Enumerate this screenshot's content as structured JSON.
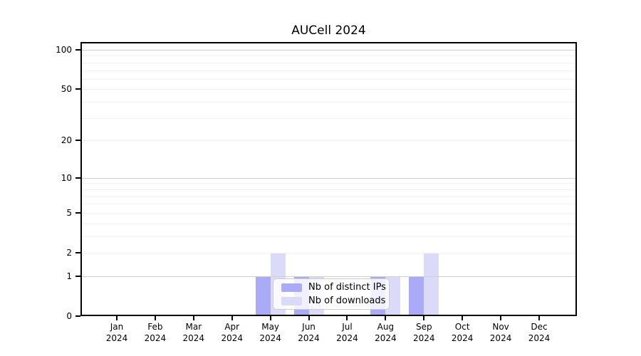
{
  "title": "AUCell 2024",
  "chart_data": {
    "type": "bar",
    "title": "AUCell 2024",
    "categories": [
      {
        "month": "Jan",
        "year": "2024"
      },
      {
        "month": "Feb",
        "year": "2024"
      },
      {
        "month": "Mar",
        "year": "2024"
      },
      {
        "month": "Apr",
        "year": "2024"
      },
      {
        "month": "May",
        "year": "2024"
      },
      {
        "month": "Jun",
        "year": "2024"
      },
      {
        "month": "Jul",
        "year": "2024"
      },
      {
        "month": "Aug",
        "year": "2024"
      },
      {
        "month": "Sep",
        "year": "2024"
      },
      {
        "month": "Oct",
        "year": "2024"
      },
      {
        "month": "Nov",
        "year": "2024"
      },
      {
        "month": "Dec",
        "year": "2024"
      }
    ],
    "series": [
      {
        "name": "Nb of distinct IPs",
        "color": "#aaaaf6",
        "values": [
          0,
          0,
          0,
          0,
          1,
          1,
          0,
          1,
          1,
          0,
          0,
          0
        ]
      },
      {
        "name": "Nb of downloads",
        "color": "#dbdbf9",
        "values": [
          0,
          0,
          0,
          0,
          2,
          1,
          0,
          1,
          2,
          0,
          0,
          0
        ]
      }
    ],
    "y_axis": {
      "scale": "symlog-log1p",
      "tick_labels": [
        0,
        1,
        2,
        5,
        10,
        20,
        50,
        100
      ],
      "major_gridlines": [
        1,
        10,
        100
      ],
      "minor_gridlines": [
        2,
        3,
        4,
        5,
        6,
        7,
        8,
        9,
        20,
        30,
        40,
        50,
        60,
        70,
        80,
        90
      ],
      "range": [
        0,
        115
      ]
    },
    "xlabel": "",
    "ylabel": "",
    "grid": true,
    "legend_position": "lower center"
  },
  "colors": {
    "axis": "#000000",
    "grid_minor": "#f2f2f2",
    "grid_major": "#cfcfcf",
    "background": "#ffffff"
  }
}
